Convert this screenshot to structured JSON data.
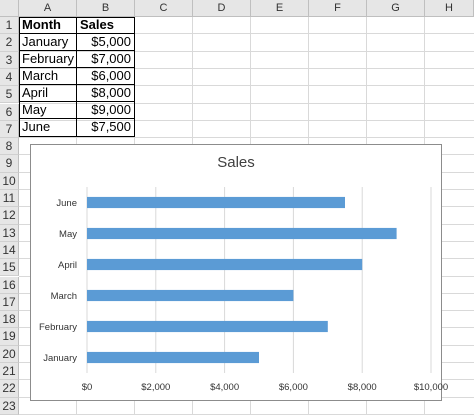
{
  "columns": [
    "A",
    "B",
    "C",
    "D",
    "E",
    "F",
    "G",
    "H"
  ],
  "rows": [
    "1",
    "2",
    "3",
    "4",
    "5",
    "6",
    "7",
    "8",
    "9",
    "10",
    "11",
    "12",
    "13",
    "14",
    "15",
    "16",
    "17",
    "18",
    "19",
    "20",
    "21",
    "22",
    "23"
  ],
  "table": {
    "headers": [
      "Month",
      "Sales"
    ],
    "rows": [
      [
        "January",
        "$5,000"
      ],
      [
        "February",
        "$7,000"
      ],
      [
        "March",
        "$6,000"
      ],
      [
        "April",
        "$8,000"
      ],
      [
        "May",
        "$9,000"
      ],
      [
        "June",
        "$7,500"
      ]
    ]
  },
  "chart_data": {
    "type": "bar",
    "orientation": "horizontal",
    "title": "Sales",
    "categories": [
      "January",
      "February",
      "March",
      "April",
      "May",
      "June"
    ],
    "values": [
      5000,
      7000,
      6000,
      8000,
      9000,
      7500
    ],
    "xlim": [
      0,
      10000
    ],
    "x_ticks": [
      "$0",
      "$2,000",
      "$4,000",
      "$6,000",
      "$8,000",
      "$10,000"
    ],
    "grid": "vertical",
    "legend": "none",
    "bar_color": "#5b9bd5"
  }
}
